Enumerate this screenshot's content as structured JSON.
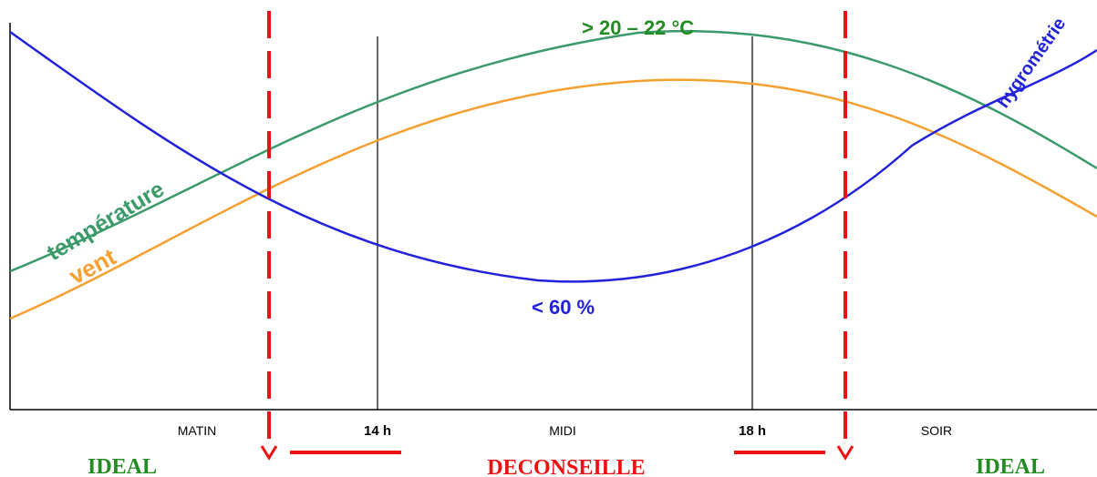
{
  "chart_data": {
    "type": "line",
    "title": "",
    "xlabel": "",
    "ylabel": "",
    "grid": false,
    "x_ticks": [
      {
        "label": "MATIN",
        "bold": false
      },
      {
        "label": "14 h",
        "bold": true
      },
      {
        "label": "MIDI",
        "bold": false
      },
      {
        "label": "18 h",
        "bold": true
      },
      {
        "label": "SOIR",
        "bold": false
      }
    ],
    "series": [
      {
        "name": "température",
        "color": "#3b9a6a"
      },
      {
        "name": "vent",
        "color": "#f5a030"
      },
      {
        "name": "hygrométrie",
        "color": "#2222dd"
      }
    ],
    "annotations": {
      "temperature_peak": "> 20 – 22 °C",
      "humidity_min": "< 60 %",
      "zone_left": "IDEAL",
      "zone_middle": "DECONSEILLE",
      "zone_right": "IDEAL"
    },
    "colors": {
      "zone_ideal": "#228b22",
      "zone_deconseille": "#ee1111",
      "divider": "#ee1111",
      "axis": "#000000"
    }
  }
}
